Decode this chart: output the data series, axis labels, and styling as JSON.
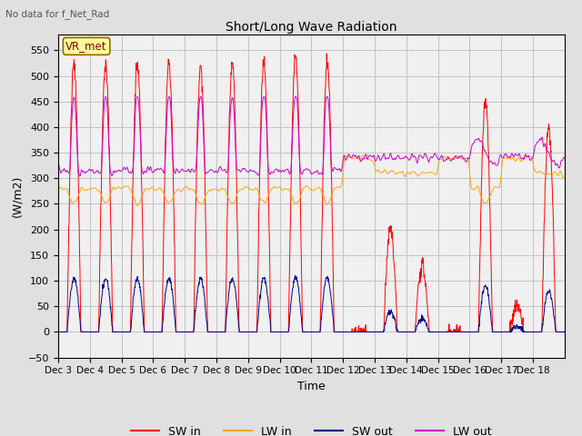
{
  "title": "Short/Long Wave Radiation",
  "subtitle": "No data for f_Net_Rad",
  "ylabel": "(W/m2)",
  "xlabel": "Time",
  "ylim": [
    -50,
    580
  ],
  "yticks": [
    -50,
    0,
    50,
    100,
    150,
    200,
    250,
    300,
    350,
    400,
    450,
    500,
    550
  ],
  "xticklabels": [
    "Dec 3",
    "Dec 4",
    "Dec 5",
    "Dec 6",
    "Dec 7",
    "Dec 8",
    "Dec 9",
    "Dec 10",
    "Dec 11",
    "Dec 12",
    "Dec 13",
    "Dec 14",
    "Dec 15",
    "Dec 16",
    "Dec 17",
    "Dec 18"
  ],
  "colors": {
    "SW_in": "#FF0000",
    "LW_in": "#FFA500",
    "SW_out": "#00008B",
    "LW_out": "#CC00CC"
  },
  "legend_labels": [
    "SW in",
    "LW in",
    "SW out",
    "LW out"
  ],
  "box_label": "VR_met",
  "background_color": "#E0E0E0",
  "plot_background": "#F0F0F0",
  "grid_color": "#BBBBBB",
  "figsize": [
    6.4,
    4.8
  ],
  "dpi": 100
}
